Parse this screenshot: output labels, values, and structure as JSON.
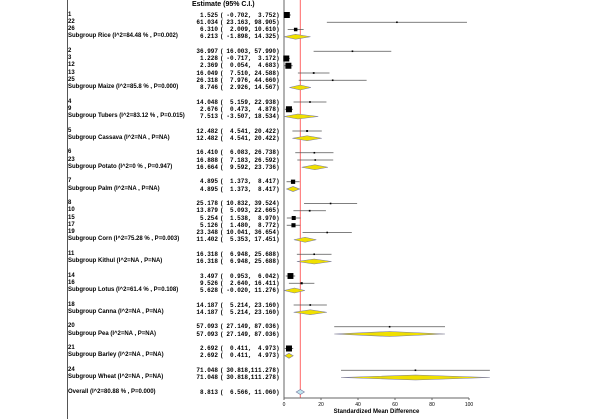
{
  "chart_data": {
    "type": "forest",
    "column_header": "Estimate (95% C.I.)",
    "xlabel": "Standardized Mean Difference",
    "xlim": [
      0,
      100
    ],
    "xticks": [
      "0",
      "20",
      "40",
      "60",
      "80",
      "100"
    ],
    "reference_line": 8.813,
    "colors": {
      "square": "#000000",
      "subgroup_diamond": "#f0e000",
      "overall_diamond": "#bfe6f0",
      "reference": "#ff6666"
    },
    "groups": [
      {
        "studies": [
          {
            "label": "1",
            "est": "1.525",
            "lo": "-0.702",
            "hi": "3.752"
          },
          {
            "label": "22",
            "est": "61.034",
            "lo": "23.163",
            "hi": "98.905"
          },
          {
            "label": "26",
            "est": "6.310",
            "lo": "2.009",
            "hi": "10.610"
          }
        ],
        "summary": {
          "label": "Subgroup Rice (I^2=84.48 % , P=0.002)",
          "est": "6.213",
          "lo": "-1.898",
          "hi": "14.325"
        }
      },
      {
        "studies": [
          {
            "label": "2",
            "est": "36.997",
            "lo": "16.003",
            "hi": "57.990"
          },
          {
            "label": "3",
            "est": "1.228",
            "lo": "-0.717",
            "hi": "3.172"
          },
          {
            "label": "12",
            "est": "2.369",
            "lo": "0.054",
            "hi": "4.683"
          },
          {
            "label": "13",
            "est": "16.049",
            "lo": "7.510",
            "hi": "24.588"
          },
          {
            "label": "25",
            "est": "26.318",
            "lo": "7.976",
            "hi": "44.660"
          }
        ],
        "summary": {
          "label": "Subgroup Maize (I^2=85.8 % , P=0.000)",
          "est": "8.746",
          "lo": "2.926",
          "hi": "14.567"
        }
      },
      {
        "studies": [
          {
            "label": "4",
            "est": "14.048",
            "lo": "5.159",
            "hi": "22.938"
          },
          {
            "label": "9",
            "est": "2.676",
            "lo": "0.473",
            "hi": "4.878"
          }
        ],
        "summary": {
          "label": "Subgroup Tubers (I^2=83.12 % , P=0.015)",
          "est": "7.513",
          "lo": "-3.507",
          "hi": "18.534"
        }
      },
      {
        "studies": [
          {
            "label": "5",
            "est": "12.482",
            "lo": "4.541",
            "hi": "20.422"
          }
        ],
        "summary": {
          "label": "Subgroup Cassava (I^2=NA , P=NA)",
          "est": "12.482",
          "lo": "4.541",
          "hi": "20.422"
        }
      },
      {
        "studies": [
          {
            "label": "6",
            "est": "16.410",
            "lo": "6.083",
            "hi": "26.738"
          },
          {
            "label": "23",
            "est": "16.888",
            "lo": "7.183",
            "hi": "26.592"
          }
        ],
        "summary": {
          "label": "Subgroup Potato (I^2=0 % , P=0.947)",
          "est": "16.664",
          "lo": "9.592",
          "hi": "23.736"
        }
      },
      {
        "studies": [
          {
            "label": "7",
            "est": "4.895",
            "lo": "1.373",
            "hi": "8.417"
          }
        ],
        "summary": {
          "label": "Subgroup Palm (I^2=NA , P=NA)",
          "est": "4.895",
          "lo": "1.373",
          "hi": "8.417"
        }
      },
      {
        "studies": [
          {
            "label": "8",
            "est": "25.178",
            "lo": "10.832",
            "hi": "39.524"
          },
          {
            "label": "10",
            "est": "13.879",
            "lo": "5.093",
            "hi": "22.665"
          },
          {
            "label": "15",
            "est": "5.254",
            "lo": "1.538",
            "hi": "8.970"
          },
          {
            "label": "17",
            "est": "5.126",
            "lo": "1.480",
            "hi": "8.772"
          },
          {
            "label": "19",
            "est": "23.348",
            "lo": "10.041",
            "hi": "36.654"
          }
        ],
        "summary": {
          "label": "Subgroup Corn (I^2=75.28 % , P=0.003)",
          "est": "11.402",
          "lo": "5.353",
          "hi": "17.451"
        }
      },
      {
        "studies": [
          {
            "label": "11",
            "est": "16.318",
            "lo": "6.948",
            "hi": "25.688"
          }
        ],
        "summary": {
          "label": "Subgroup Kithul (I^2=NA , P=NA)",
          "est": "16.318",
          "lo": "6.948",
          "hi": "25.688"
        }
      },
      {
        "studies": [
          {
            "label": "14",
            "est": "3.497",
            "lo": "0.953",
            "hi": "6.042"
          },
          {
            "label": "16",
            "est": "9.526",
            "lo": "2.640",
            "hi": "16.411"
          }
        ],
        "summary": {
          "label": "Subgroup Lotus (I^2=61.4 % , P=0.108)",
          "est": "5.628",
          "lo": "-0.020",
          "hi": "11.276"
        }
      },
      {
        "studies": [
          {
            "label": "18",
            "est": "14.187",
            "lo": "5.214",
            "hi": "23.160"
          }
        ],
        "summary": {
          "label": "Subgroup Canna (I^2=NA , P=NA)",
          "est": "14.187",
          "lo": "5.214",
          "hi": "23.160"
        }
      },
      {
        "studies": [
          {
            "label": "20",
            "est": "57.093",
            "lo": "27.149",
            "hi": "87.036"
          }
        ],
        "summary": {
          "label": "Subgroup Pea (I^2=NA , P=NA)",
          "est": "57.093",
          "lo": "27.149",
          "hi": "87.036"
        }
      },
      {
        "studies": [
          {
            "label": "21",
            "est": "2.692",
            "lo": "0.411",
            "hi": "4.973"
          }
        ],
        "summary": {
          "label": "Subgroup Barley (I^2=NA , P=NA)",
          "est": "2.692",
          "lo": "0.411",
          "hi": "4.973"
        }
      },
      {
        "studies": [
          {
            "label": "24",
            "est": "71.048",
            "lo": "30.818",
            "hi": "111.278"
          }
        ],
        "summary": {
          "label": "Subgroup Wheat (I^2=NA , P=NA)",
          "est": "71.048",
          "lo": "30.818",
          "hi": "111.278"
        }
      }
    ],
    "overall": {
      "label": "Overall (I^2=80.88 % , P=0.000)",
      "est": "8.813",
      "lo": "6.566",
      "hi": "11.060"
    }
  }
}
